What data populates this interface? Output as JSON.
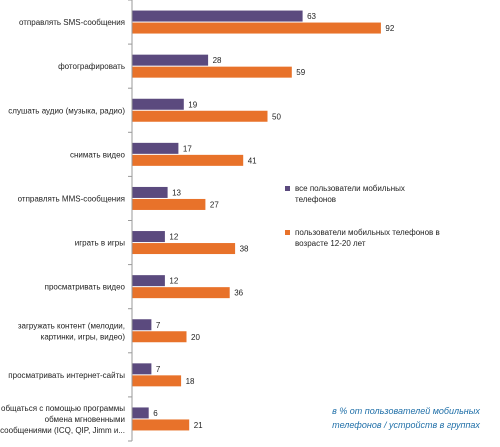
{
  "chart_data": {
    "type": "bar",
    "orientation": "horizontal",
    "categories": [
      "отправлять SMS-сообщения",
      "фотографировать",
      "слушать аудио (музыка, радио)",
      "снимать видео",
      "отправлять MMS-сообщения",
      "играть в игры",
      "просматривать видео",
      "загружать контент (мелодии, картинки, игры, видео)",
      "просматривать интернет-сайты",
      "общаться с помощью программы обмена мгновенными сообщениями (ICQ, QIP, Jimm и..."
    ],
    "category_lines": [
      [
        "отправлять SMS-сообщения"
      ],
      [
        "фотографировать"
      ],
      [
        "слушать аудио (музыка, радио)"
      ],
      [
        "снимать видео"
      ],
      [
        "отправлять MMS-сообщения"
      ],
      [
        "играть в игры"
      ],
      [
        "просматривать видео"
      ],
      [
        "загружать контент (мелодии,",
        "картинки, игры, видео)"
      ],
      [
        "просматривать интернет-сайты"
      ],
      [
        "общаться с помощью программы",
        "обмена мгновенными",
        "сообщениями (ICQ, QIP, Jimm и..."
      ]
    ],
    "series": [
      {
        "name": "все пользователи мобильных телефонов",
        "color": "#5b4a7e",
        "values": [
          63,
          28,
          19,
          17,
          13,
          12,
          12,
          7,
          7,
          6
        ]
      },
      {
        "name": "пользователи мобильных телефонов в возрасте 12-20 лет",
        "color": "#e8722a",
        "values": [
          92,
          59,
          50,
          41,
          27,
          38,
          36,
          20,
          18,
          21
        ]
      }
    ],
    "legend_lines": [
      [
        "все пользователи мобильных телефонов"
      ],
      [
        "пользователи мобильных телефонов в",
        "возрасте 12-20 лет"
      ]
    ],
    "xlim": [
      0,
      100
    ],
    "grid": false,
    "legend_position": "right",
    "note": "в % от пользователей мобильных телефонов / устройств в группах",
    "note_lines": [
      "в % от пользователей мобильных",
      "телефонов / устройств в группах"
    ]
  }
}
